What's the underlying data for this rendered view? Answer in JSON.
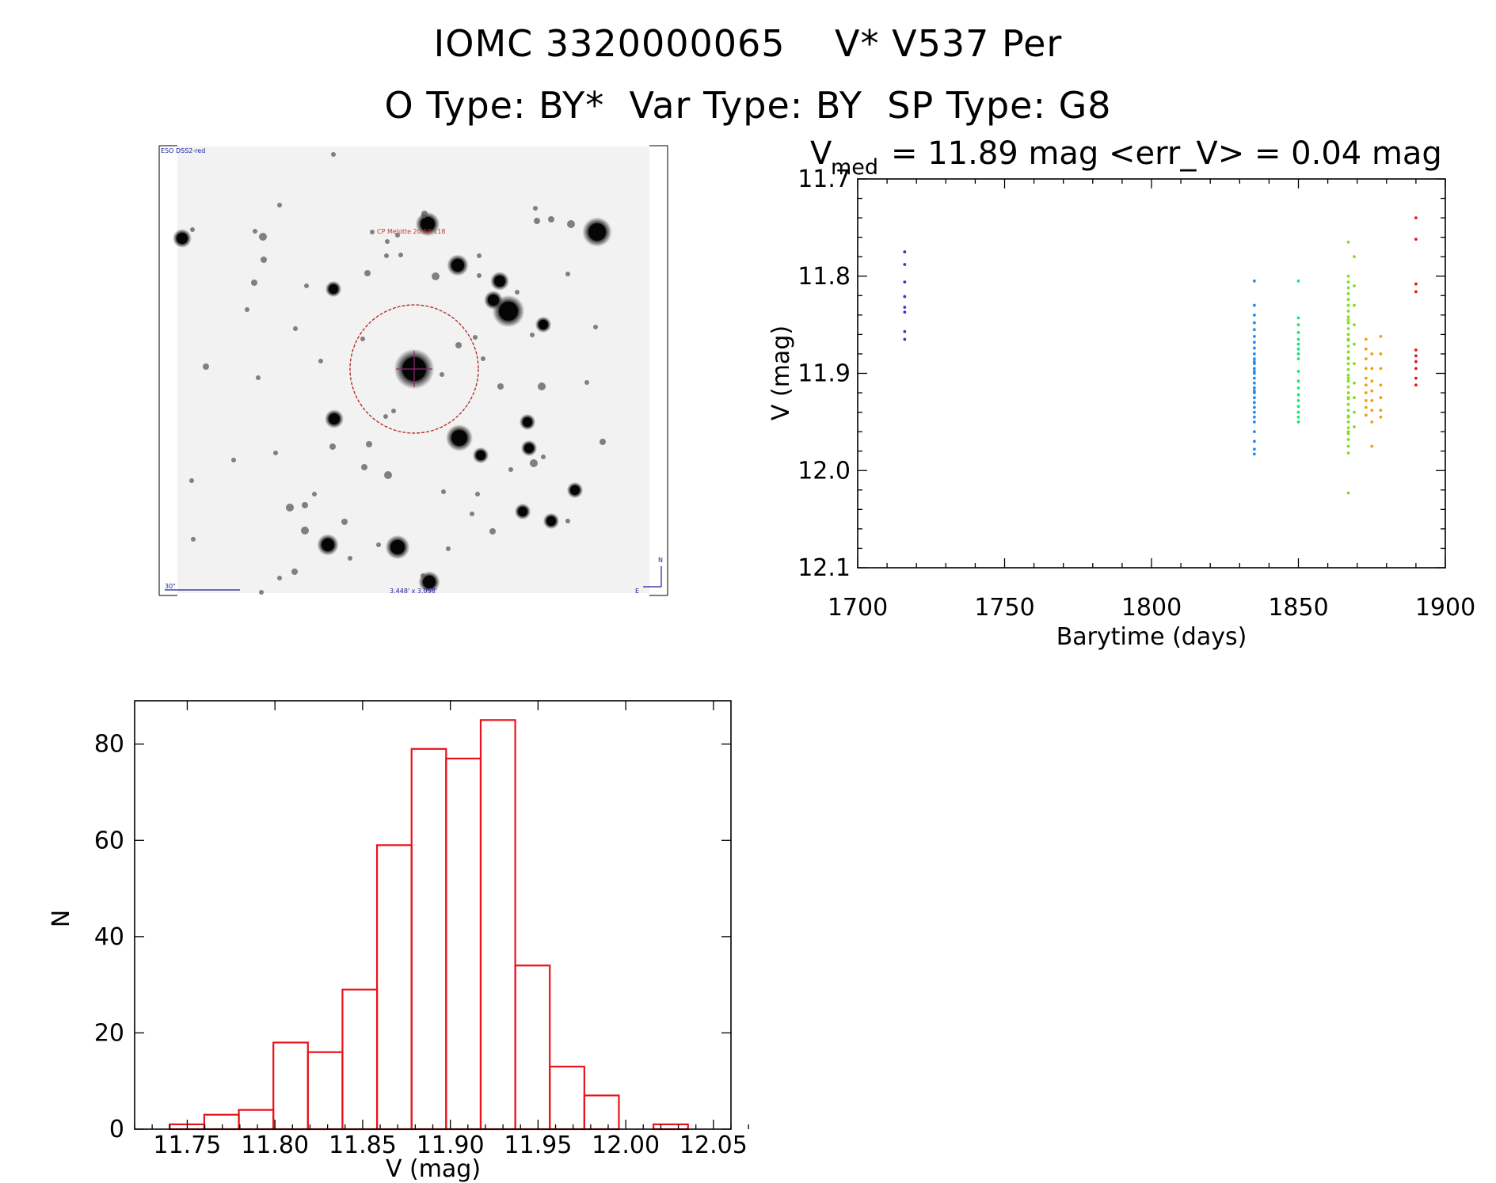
{
  "header": {
    "title_line1": "IOMC 3320000065    V* V537 Per",
    "title_line2": "O Type: BY*  Var Type: BY  SP Type: G8"
  },
  "finder_image": {
    "label_survey": "ESO DSS2-red",
    "label_target": "CP Melotte 20 AP 118",
    "label_scale": "30\"",
    "label_fov": "3.448' x 3.058'",
    "label_north": "N",
    "label_east": "E",
    "colors": {
      "circle": "#b22222",
      "labels": "#1a1aa0",
      "target_label": "#c0392b"
    }
  },
  "colors": {
    "hist_bars": "#e8131b",
    "groups": [
      "#4a2bd6",
      "#1e8cf0",
      "#19e67a",
      "#7fe01a",
      "#f0a010",
      "#e8131b"
    ]
  },
  "chart_data": [
    {
      "type": "scatter",
      "title_prefix": "V",
      "title_sub": "med",
      "title_rest": "= 11.89 mag <err_V> = 0.04 mag",
      "xlabel": "Barytime (days)",
      "ylabel": "V (mag)",
      "xlim": [
        1700,
        1900
      ],
      "ylim": [
        12.1,
        11.7
      ],
      "xticks": [
        "1700",
        "1750",
        "1800",
        "1850",
        "1900"
      ],
      "yticks": [
        "11.7",
        "11.8",
        "11.9",
        "12.0",
        "12.1"
      ],
      "series": [
        {
          "color": "#4a2bd6",
          "x": [
            1716,
            1716,
            1716,
            1716,
            1716,
            1716,
            1716,
            1716
          ],
          "y": [
            11.775,
            11.788,
            11.806,
            11.821,
            11.832,
            11.837,
            11.857,
            11.865
          ]
        },
        {
          "color": "#1e8cf0",
          "x": [
            1835,
            1835,
            1835,
            1835,
            1835,
            1835,
            1835,
            1835,
            1835,
            1835,
            1835,
            1835,
            1835,
            1835,
            1835,
            1835,
            1835,
            1835,
            1835,
            1835,
            1835,
            1835,
            1835,
            1835,
            1835,
            1835,
            1835,
            1835,
            1835,
            1835
          ],
          "y": [
            11.805,
            11.83,
            11.84,
            11.848,
            11.855,
            11.862,
            11.868,
            11.874,
            11.88,
            11.885,
            11.89,
            11.895,
            11.9,
            11.905,
            11.91,
            11.915,
            11.92,
            11.925,
            11.93,
            11.935,
            11.94,
            11.945,
            11.95,
            11.96,
            11.97,
            11.978,
            11.983,
            11.888,
            11.898,
            11.918
          ]
        },
        {
          "color": "#19e67a",
          "x": [
            1850,
            1850,
            1850,
            1850,
            1850,
            1850,
            1850,
            1850,
            1850,
            1850,
            1850,
            1850,
            1850,
            1850,
            1850,
            1850,
            1850,
            1850
          ],
          "y": [
            11.805,
            11.843,
            11.85,
            11.858,
            11.865,
            11.87,
            11.875,
            11.88,
            11.885,
            11.898,
            11.908,
            11.915,
            11.922,
            11.928,
            11.934,
            11.94,
            11.945,
            11.95
          ]
        },
        {
          "color": "#7fe01a",
          "x": [
            1867,
            1867,
            1867,
            1867,
            1867,
            1867,
            1867,
            1867,
            1867,
            1867,
            1867,
            1867,
            1867,
            1867,
            1867,
            1867,
            1867,
            1867,
            1867,
            1867,
            1867,
            1867,
            1867,
            1867,
            1867,
            1867,
            1867,
            1867,
            1867,
            1867,
            1867,
            1867,
            1867,
            1867,
            1867,
            1867,
            1867,
            1867,
            1867,
            1867,
            1869,
            1869,
            1869,
            1869,
            1869,
            1869,
            1869,
            1869,
            1869,
            1869
          ],
          "y": [
            11.765,
            11.8,
            11.806,
            11.812,
            11.818,
            11.824,
            11.83,
            11.836,
            11.842,
            11.848,
            11.854,
            11.86,
            11.866,
            11.872,
            11.878,
            11.884,
            11.89,
            11.896,
            11.902,
            11.908,
            11.914,
            11.92,
            11.926,
            11.932,
            11.938,
            11.944,
            11.95,
            11.956,
            11.962,
            11.968,
            11.975,
            11.982,
            11.905,
            11.885,
            11.865,
            11.845,
            11.925,
            11.945,
            11.96,
            12.023,
            11.78,
            11.81,
            11.83,
            11.85,
            11.87,
            11.89,
            11.91,
            11.925,
            11.94,
            11.955
          ]
        },
        {
          "color": "#f0a010",
          "x": [
            1873,
            1873,
            1873,
            1873,
            1873,
            1873,
            1873,
            1873,
            1873,
            1873,
            1875,
            1875,
            1875,
            1875,
            1875,
            1875,
            1875,
            1875,
            1878,
            1878,
            1878,
            1878,
            1878,
            1878,
            1878
          ],
          "y": [
            11.865,
            11.875,
            11.885,
            11.895,
            11.905,
            11.912,
            11.92,
            11.928,
            11.935,
            11.943,
            11.88,
            11.895,
            11.908,
            11.918,
            11.928,
            11.938,
            11.95,
            11.975,
            11.862,
            11.88,
            11.895,
            11.912,
            11.925,
            11.938,
            11.945
          ]
        },
        {
          "color": "#e8131b",
          "x": [
            1890,
            1890,
            1890,
            1890,
            1890,
            1890,
            1890,
            1890,
            1890,
            1890
          ],
          "y": [
            11.74,
            11.762,
            11.808,
            11.816,
            11.876,
            11.882,
            11.888,
            11.895,
            11.905,
            11.912
          ]
        }
      ]
    },
    {
      "type": "bar",
      "subtype": "histogram",
      "xlabel": "V (mag)",
      "ylabel": "N",
      "xlim": [
        11.72,
        12.06
      ],
      "ylim": [
        0,
        89
      ],
      "xticks": [
        "11.75",
        "11.80",
        "11.85",
        "11.90",
        "11.95",
        "12.00",
        "12.05"
      ],
      "yticks": [
        "0",
        "20",
        "40",
        "60",
        "80"
      ],
      "bin_edges": [
        11.74,
        11.7597,
        11.7794,
        11.7991,
        11.8188,
        11.8385,
        11.8582,
        11.8779,
        11.8976,
        11.9173,
        11.937,
        11.9567,
        11.9764,
        11.9961,
        12.0158,
        12.0355
      ],
      "values": [
        1,
        3,
        4,
        18,
        16,
        29,
        59,
        79,
        77,
        85,
        34,
        13,
        7,
        0,
        1
      ]
    }
  ]
}
